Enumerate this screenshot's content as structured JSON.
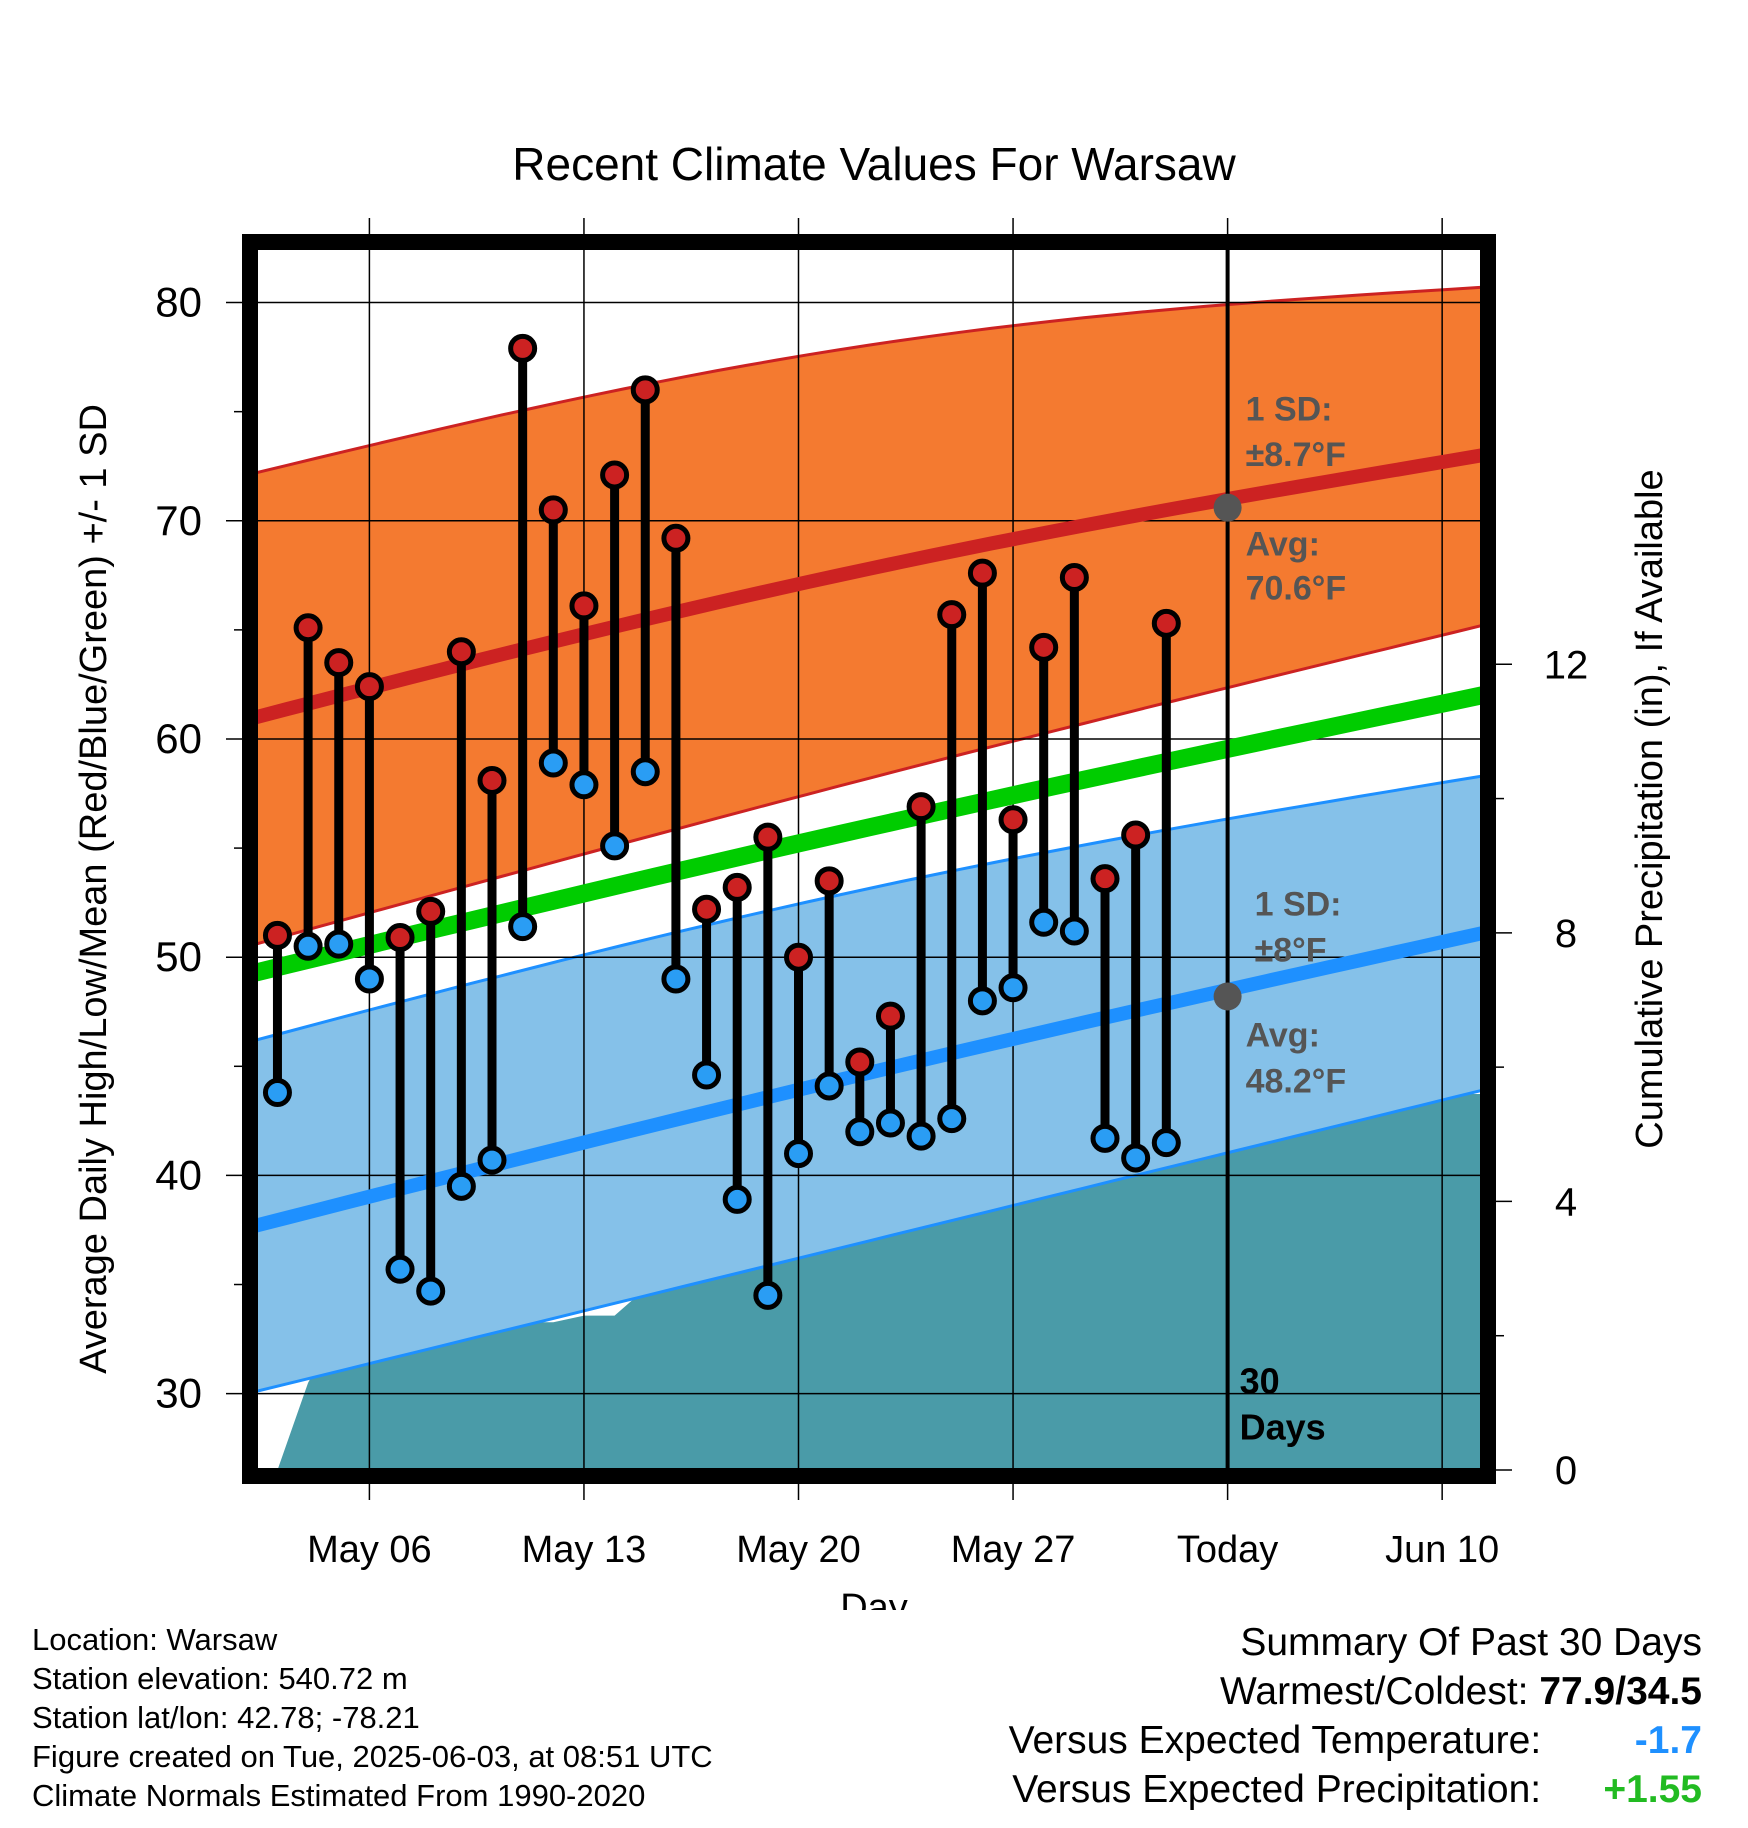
{
  "chart_data": {
    "type": "line",
    "title": "Recent Climate Values For Warsaw",
    "xlabel": "Day",
    "ylabel": "Average Daily High/Low/Mean (Red/Blue/Green) +/- 1 SD",
    "y2label": "Cumulative Precipitation (in), If Available",
    "ylim": [
      26.5,
      82.5
    ],
    "y2lim": [
      0,
      18.2
    ],
    "yticks": [
      30,
      40,
      50,
      60,
      70,
      80
    ],
    "y2ticks": [
      0,
      4,
      8,
      12
    ],
    "xlim_days_since_may3": [
      -0.7,
      39.3
    ],
    "xticks": [
      {
        "day": 3,
        "label": "May 06"
      },
      {
        "day": 10,
        "label": "May 13"
      },
      {
        "day": 17,
        "label": "May 20"
      },
      {
        "day": 24,
        "label": "May 27"
      },
      {
        "day": 31,
        "label": "Today"
      },
      {
        "day": 38,
        "label": "Jun 10"
      }
    ],
    "grid": true,
    "today_day": 31,
    "today_label": [
      "30",
      "Days"
    ],
    "colors": {
      "high": "#cc2222",
      "high_band": "#f47a30",
      "low": "#1e90ff",
      "low_band": "#85c1e9",
      "mean": "#00cc00",
      "precip": "#4a9ba8",
      "high_marker": "#cc2222",
      "low_marker": "#2a9df4",
      "avg_dot": "#555555",
      "annot_text": "#555555"
    },
    "normals": {
      "days": [
        -0.7,
        39.3
      ],
      "high_avg": [
        61.0,
        73.0
      ],
      "high_sd_upper": [
        72.2,
        80.7
      ],
      "high_sd_lower": [
        50.6,
        65.2
      ],
      "mean_avg": [
        49.3,
        62.0
      ],
      "low_avg": [
        37.7,
        51.1
      ],
      "low_sd_upper": [
        46.2,
        58.3
      ],
      "low_sd_lower": [
        30.1,
        43.9
      ]
    },
    "series": [
      {
        "name": "High",
        "days": [
          0,
          1,
          2,
          3,
          4,
          5,
          6,
          7,
          8,
          9,
          10,
          11,
          12,
          13,
          14,
          15,
          16,
          17,
          18,
          19,
          20,
          21,
          22,
          23,
          24,
          25,
          26,
          27,
          28,
          29,
          30
        ],
        "values": [
          51.0,
          65.1,
          63.5,
          62.4,
          50.9,
          52.1,
          64.0,
          58.1,
          77.9,
          70.5,
          66.1,
          72.1,
          76.0,
          69.2,
          52.2,
          53.2,
          55.5,
          50.0,
          53.5,
          45.2,
          47.3,
          56.9,
          65.7,
          67.6,
          56.3,
          64.2,
          67.4,
          53.6,
          55.6,
          65.3,
          null
        ],
        "low_values": [
          43.8,
          50.5,
          50.6,
          49.0,
          35.7,
          34.7,
          39.5,
          40.7,
          51.4,
          58.9,
          57.9,
          55.1,
          58.5,
          49.0,
          44.6,
          38.9,
          34.5,
          41.0,
          44.1,
          42.0,
          42.4,
          41.8,
          42.6,
          48.0,
          48.6,
          51.6,
          51.2,
          41.7,
          40.8,
          41.5,
          null
        ]
      }
    ],
    "precip": {
      "days": [
        0,
        1,
        1.7,
        2,
        3,
        5,
        9,
        10,
        11,
        12,
        13,
        14,
        15,
        16,
        17,
        18,
        19,
        20,
        21,
        22,
        23,
        24,
        25,
        26,
        27,
        28,
        29,
        30,
        39.3
      ],
      "values": [
        0,
        1.3,
        1.9,
        2.1,
        2.2,
        2.2,
        2.2,
        2.3,
        2.3,
        2.7,
        3.2,
        3.5,
        3.5,
        3.5,
        3.5,
        3.9,
        4.2,
        4.5,
        4.9,
        4.9,
        4.9,
        4.9,
        5.3,
        5.4,
        5.4,
        5.6,
        5.6,
        5.6,
        5.6
      ]
    },
    "annotations": {
      "high_sd_label": "1 SD:",
      "high_sd_value": "±8.7°F",
      "high_avg_label": "Avg:",
      "high_avg_value": "70.6°F",
      "high_avg_today": 70.6,
      "low_sd_label": "1 SD:",
      "low_sd_value": "±8°F",
      "low_avg_label": "Avg:",
      "low_avg_value": "48.2°F",
      "low_avg_today": 48.2
    }
  },
  "footer": {
    "location": "Location: Warsaw",
    "elevation": "Station elevation: 540.72 m",
    "latlon": "Station lat/lon: 42.78; -78.21",
    "created": "Figure created on Tue, 2025-06-03, at 08:51 UTC",
    "normals": "Climate Normals Estimated From 1990-2020"
  },
  "summary": {
    "title": "Summary Of Past 30 Days",
    "warm_cold_label": "Warmest/Coldest:",
    "warm_cold_value": "77.9/34.5",
    "temp_label": "Versus Expected Temperature:",
    "temp_value": "-1.7",
    "temp_color": "#1e90ff",
    "precip_label": "Versus Expected Precipitation:",
    "precip_value": "+1.55",
    "precip_color": "#22bb22"
  }
}
